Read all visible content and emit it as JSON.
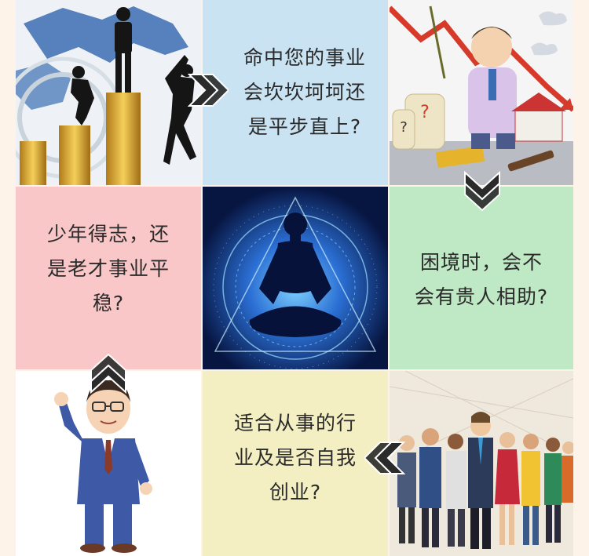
{
  "colors": {
    "page_bg": "#fdf3e8",
    "blue_panel": "#c9e3f3",
    "pink_panel": "#f9c7c8",
    "green_panel": "#bfe8c5",
    "yellow_panel": "#f3efc3",
    "cosmic_bg": "#0a1c4d",
    "arrow": "#2a2a2a"
  },
  "panels": {
    "career_question": {
      "lines": [
        "命中您的事业",
        "会坎坎坷坷还",
        "是平步直上?"
      ]
    },
    "success_question": {
      "lines": [
        "少年得志，还",
        "是老才事业平",
        "稳?"
      ]
    },
    "helper_question": {
      "lines": [
        "困境时，会不",
        "会有贵人相助?"
      ]
    },
    "industry_question": {
      "lines": [
        "适合从事的行",
        "业及是否自我",
        "创业?"
      ]
    }
  },
  "illustrations": {
    "top_left": "business-silhouettes-on-coin-stacks",
    "top_right": "worried-businessman-with-falling-chart",
    "center": "meditating-silhouette-cosmic",
    "bottom_left": "cartoon-man-in-suit-waving",
    "bottom_right": "crowd-of-business-people"
  },
  "icons": {
    "arrow": "chevron-arrow-icon"
  }
}
